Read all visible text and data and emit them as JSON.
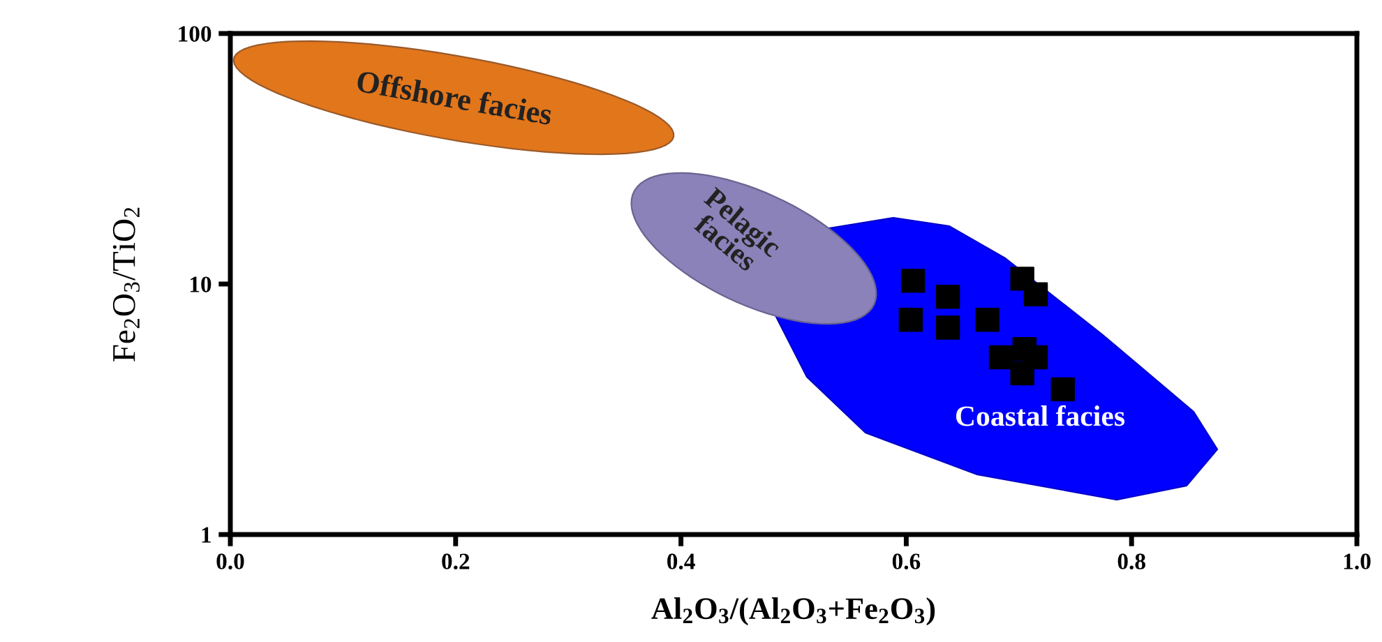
{
  "chart_data": {
    "type": "scatter",
    "xlabel": "Al$_{2}$O$_{3}$/(Al$_{2}$O$_{3}$+Fe$_{2}$O$_{3}$)",
    "ylabel": "Fe$_{2}$O$_{3}$/TiO$_{2}$",
    "log": "y",
    "xlim": [
      0,
      1
    ],
    "ylim": [
      1,
      100
    ],
    "xticks": [
      {
        "value": 0,
        "label": "0.0"
      },
      {
        "value": 0.2,
        "label": "0.2"
      },
      {
        "value": 0.4,
        "label": "0.4"
      },
      {
        "value": 0.6,
        "label": "0.6"
      },
      {
        "value": 0.8,
        "label": "0.8"
      },
      {
        "value": 1,
        "label": "1.0"
      }
    ],
    "yticks": [
      1,
      10,
      100
    ],
    "grid": false,
    "marker": "square",
    "series": [
      {
        "color": "#000000",
        "x": [
          0.606,
          0.637,
          0.604,
          0.637,
          0.672,
          0.703,
          0.715,
          0.684,
          0.705,
          0.715,
          0.703,
          0.739
        ],
        "values": [
          10.3,
          8.9,
          7.2,
          6.7,
          7.2,
          10.5,
          9.1,
          5.1,
          5.5,
          5.1,
          4.4,
          3.8
        ]
      }
    ],
    "annotations": [
      "Offshore facies",
      "Pelagic\nfacies",
      "Coastal facies"
    ]
  }
}
